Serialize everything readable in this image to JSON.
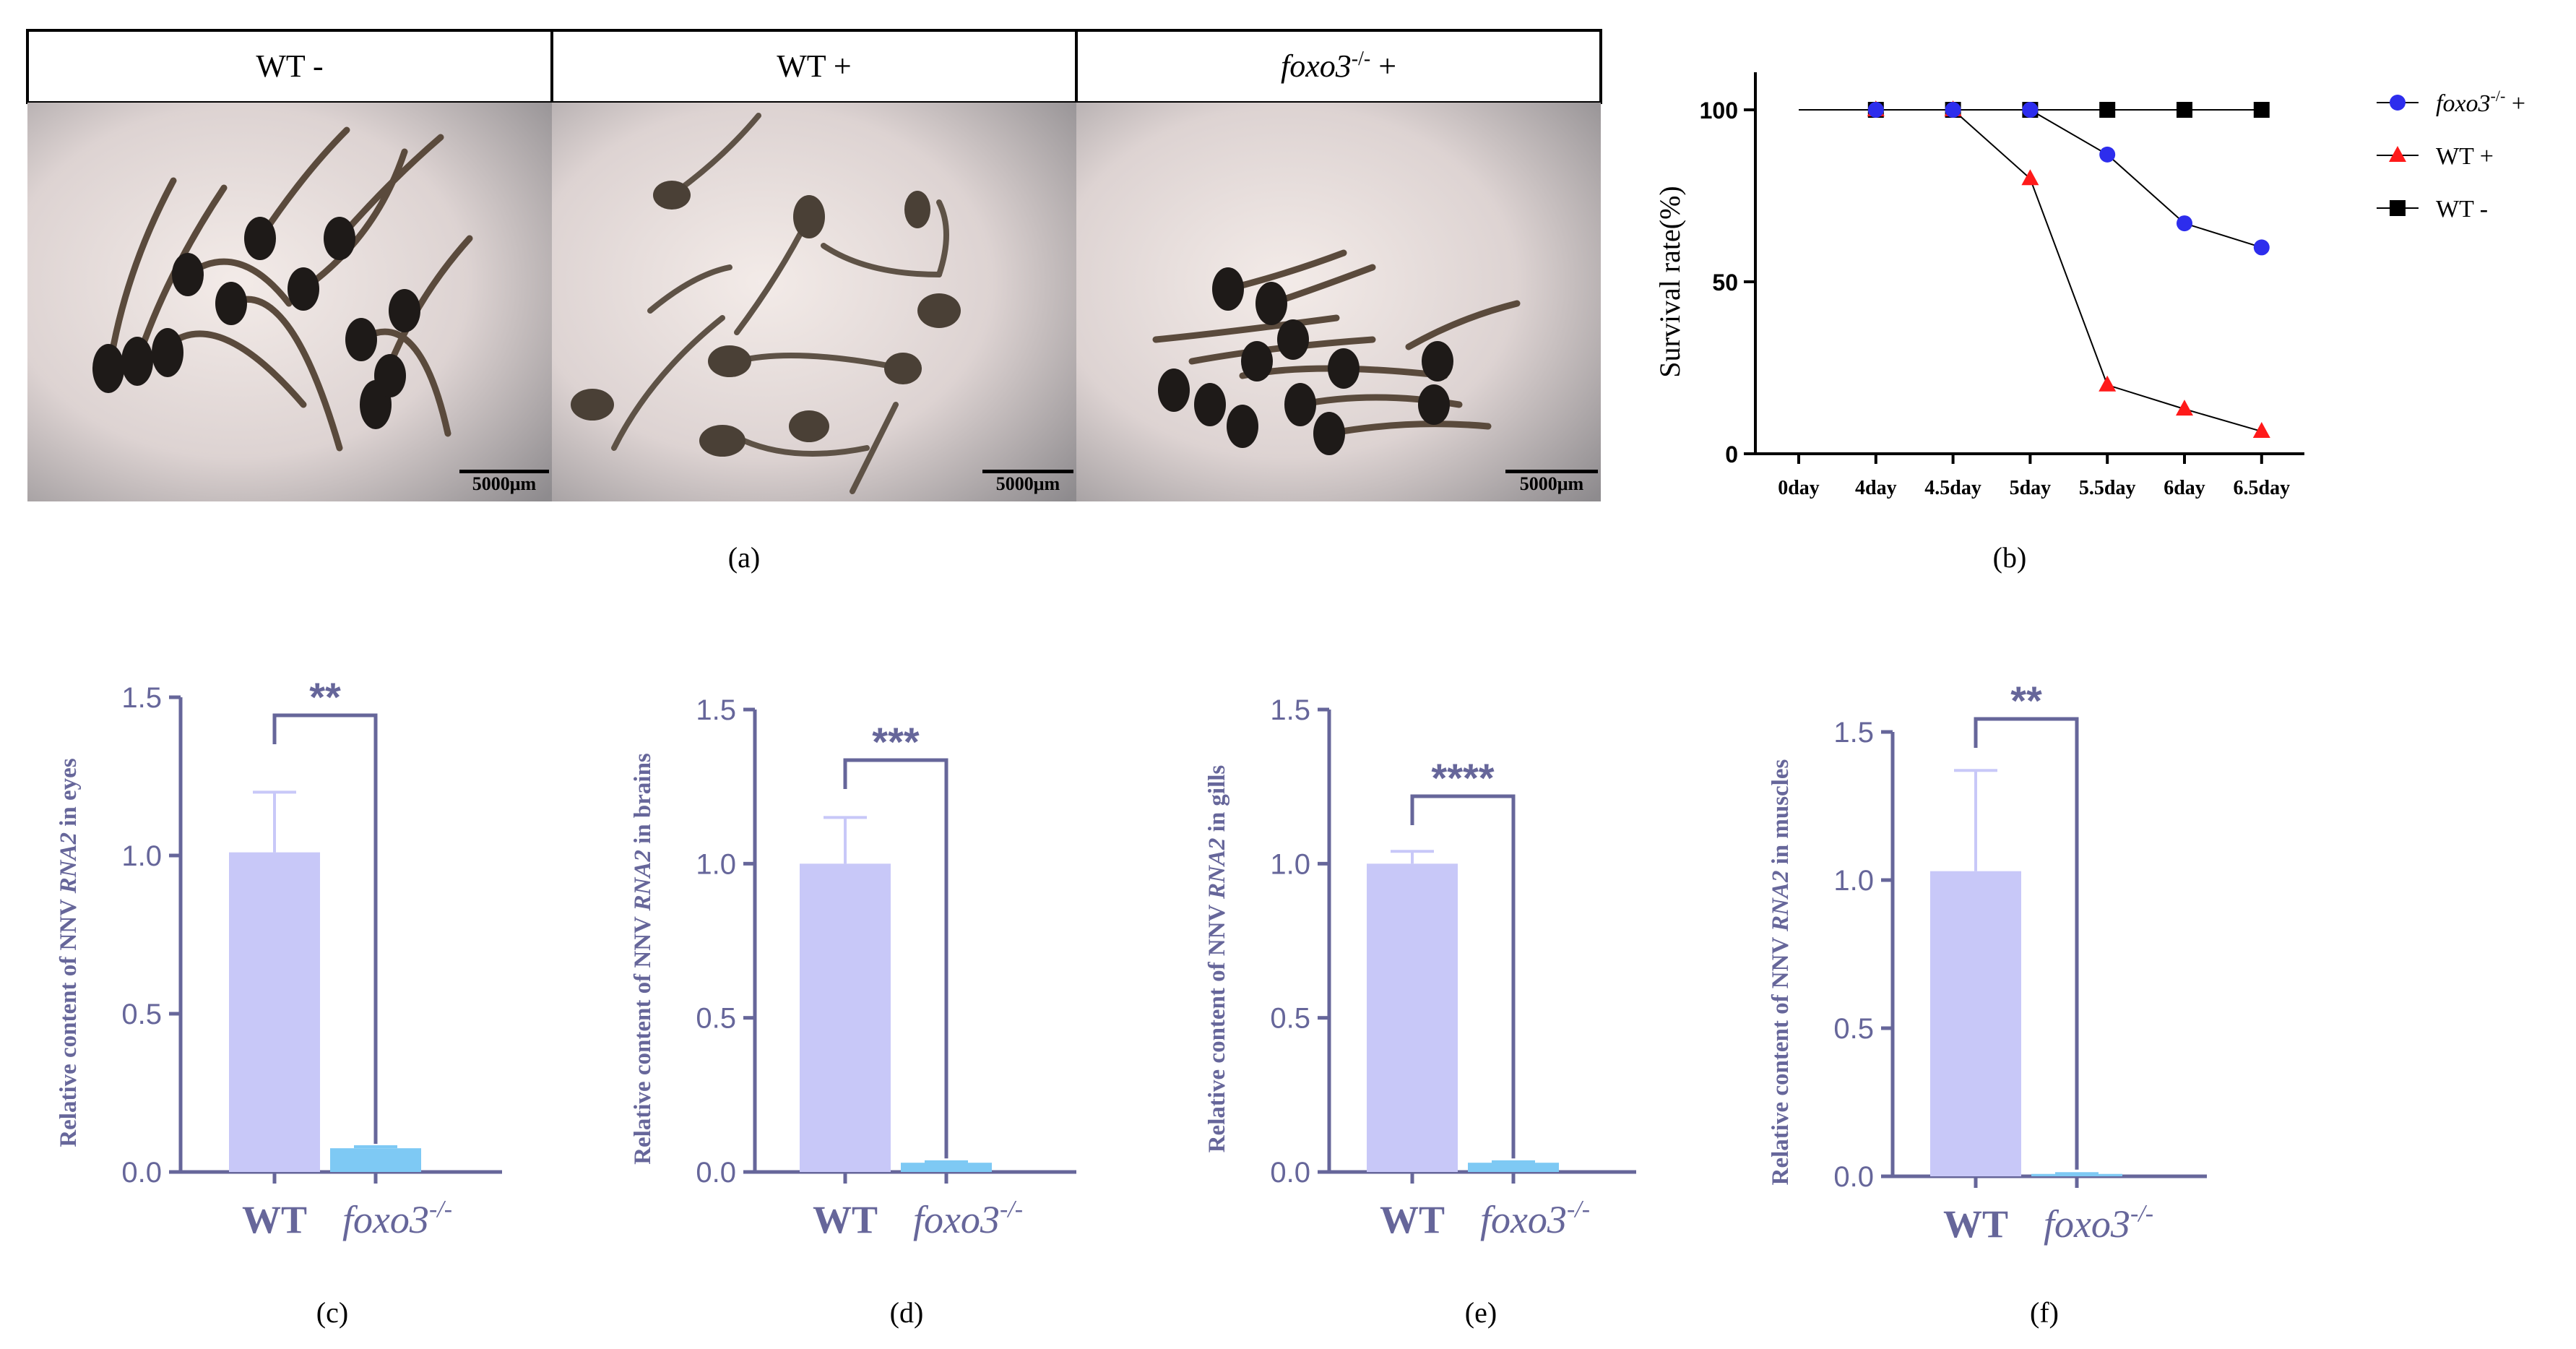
{
  "photo_panel": {
    "headers": [
      "WT  -",
      "WT  +",
      "foxo3-/-  +"
    ],
    "scale_bar": "5000μm"
  },
  "panel_labels": [
    "(a)",
    "(b)",
    "(c)",
    "(d)",
    "(e)",
    "(f)"
  ],
  "colors": {
    "axis_purple": "#66669a",
    "bar_wt": "#c8c8f8",
    "bar_ko": "#7ec9f4",
    "line_ko": "#2d2ded",
    "line_wt_plus": "#ff1a1a",
    "line_wt_minus": "#000000"
  },
  "chart_data": [
    {
      "id": "b",
      "type": "line",
      "ylabel": "Survival rate(%)",
      "x": [
        "0day",
        "4day",
        "4.5day",
        "5day",
        "5.5day",
        "6day",
        "6.5day"
      ],
      "ylim": [
        0,
        100
      ],
      "yticks": [
        0,
        50,
        100
      ],
      "legend": "right",
      "series": [
        {
          "name": "foxo3-/- +",
          "marker": "circle",
          "x": [
            "4day",
            "4.5day",
            "5day",
            "5.5day",
            "6day",
            "6.5day"
          ],
          "values": [
            100,
            100,
            100,
            87,
            67,
            60
          ]
        },
        {
          "name": "WT +",
          "marker": "triangle",
          "x": [
            "4day",
            "4.5day",
            "5day",
            "5.5day",
            "6day",
            "6.5day"
          ],
          "values": [
            100,
            100,
            80,
            20,
            13,
            6.5
          ]
        },
        {
          "name": "WT -",
          "marker": "square",
          "x": [
            "4day",
            "4.5day",
            "5day",
            "5.5day",
            "6day",
            "6.5day"
          ],
          "values": [
            100,
            100,
            100,
            100,
            100,
            100
          ]
        }
      ],
      "line_from": "0day"
    },
    {
      "id": "c",
      "type": "bar",
      "ylabel": "Relative content of NNV RNA2 in eyes",
      "categories": [
        "WT",
        "foxo3-/-"
      ],
      "values": [
        1.01,
        0.075
      ],
      "errors": [
        0.19,
        0.005
      ],
      "ylim": [
        0,
        1.5
      ],
      "yticks": [
        0.0,
        0.5,
        1.0,
        1.5
      ],
      "significance": "**"
    },
    {
      "id": "d",
      "type": "bar",
      "ylabel": "Relative content of NNV RNA2 in brains",
      "categories": [
        "WT",
        "foxo3-/-"
      ],
      "values": [
        1.0,
        0.03
      ],
      "errors": [
        0.15,
        0.003
      ],
      "ylim": [
        0,
        1.5
      ],
      "yticks": [
        0.0,
        0.5,
        1.0,
        1.5
      ],
      "significance": "***"
    },
    {
      "id": "e",
      "type": "bar",
      "ylabel": "Relative content of NNV RNA2 in gills",
      "categories": [
        "WT",
        "foxo3-/-"
      ],
      "values": [
        1.0,
        0.03
      ],
      "errors": [
        0.04,
        0.003
      ],
      "ylim": [
        0,
        1.5
      ],
      "yticks": [
        0.0,
        0.5,
        1.0,
        1.5
      ],
      "significance": "****"
    },
    {
      "id": "f",
      "type": "bar",
      "ylabel": "Relative content of NNV RNA2 in muscles",
      "categories": [
        "WT",
        "foxo3-/-"
      ],
      "values": [
        1.03,
        0.008
      ],
      "errors": [
        0.34,
        0.001
      ],
      "ylim": [
        0,
        1.5
      ],
      "yticks": [
        0.0,
        0.5,
        1.0,
        1.5
      ],
      "significance": "**"
    }
  ]
}
